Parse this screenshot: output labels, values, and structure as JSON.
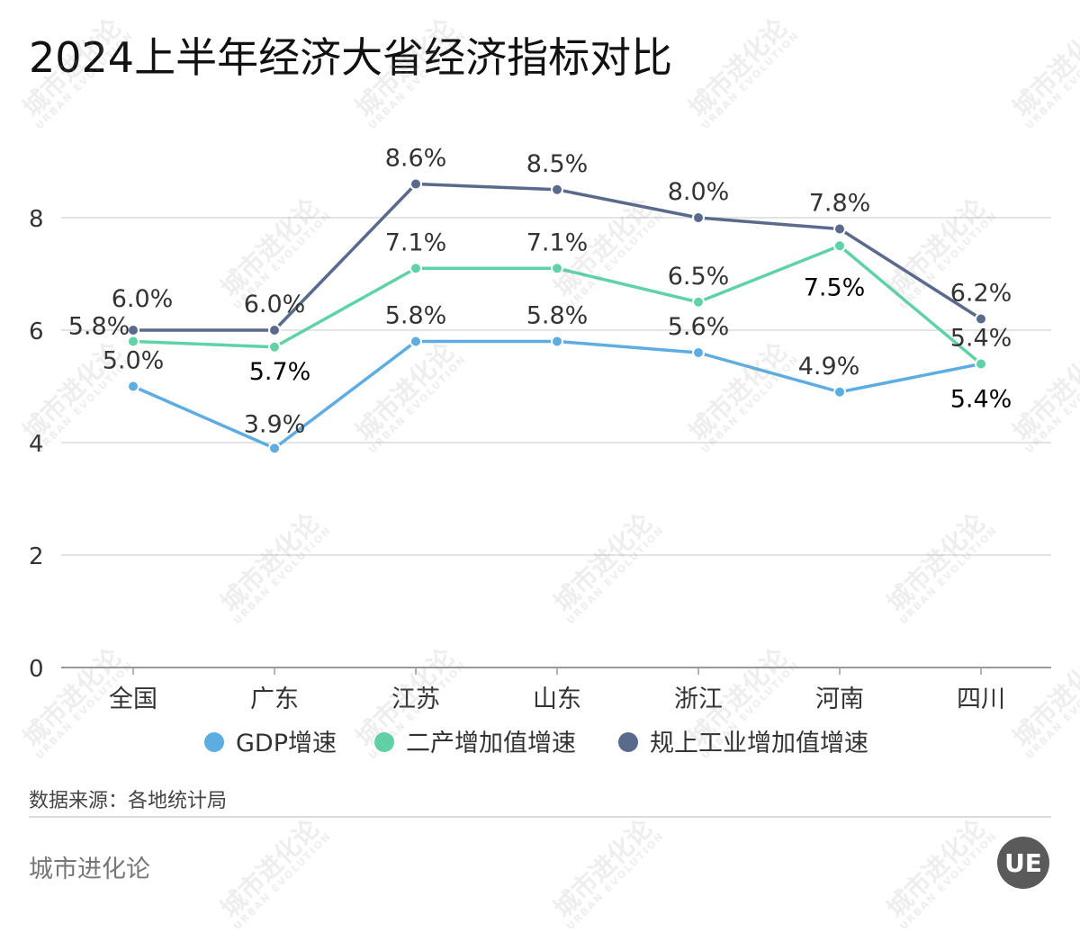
{
  "chart_data": {
    "type": "line",
    "title": "2024上半年经济大省经济指标对比",
    "categories": [
      "全国",
      "广东",
      "江苏",
      "山东",
      "浙江",
      "河南",
      "四川"
    ],
    "ylim": [
      0,
      9
    ],
    "yticks": [
      0,
      2,
      4,
      6,
      8
    ],
    "grid": true,
    "legend_position": "bottom",
    "series": [
      {
        "name": "GDP增速",
        "color": "#5dade2",
        "values": [
          5.0,
          3.9,
          5.8,
          5.8,
          5.6,
          4.9,
          5.4
        ],
        "labels": [
          "5.0%",
          "3.9%",
          "5.8%",
          "5.8%",
          "5.6%",
          "4.9%",
          "5.4%"
        ]
      },
      {
        "name": "二产增加值增速",
        "color": "#5fd3a5",
        "values": [
          5.8,
          5.7,
          7.1,
          7.1,
          6.5,
          7.5,
          5.4
        ],
        "labels": [
          "5.8%",
          "5.7%",
          "7.1%",
          "7.1%",
          "6.5%",
          "7.5%",
          "5.4%"
        ]
      },
      {
        "name": "规上工业增加值增速",
        "color": "#5a6a8c",
        "values": [
          6.0,
          6.0,
          8.6,
          8.5,
          8.0,
          7.8,
          6.2
        ],
        "labels": [
          "6.0%",
          "6.0%",
          "8.6%",
          "8.5%",
          "8.0%",
          "7.8%",
          "6.2%"
        ]
      }
    ]
  },
  "footer": {
    "source": "数据来源：各地统计局",
    "brand": "城市进化论",
    "logo_text": "UE"
  },
  "watermark": {
    "text": "城市进化论",
    "sub": "URBAN EVOLUTION"
  }
}
